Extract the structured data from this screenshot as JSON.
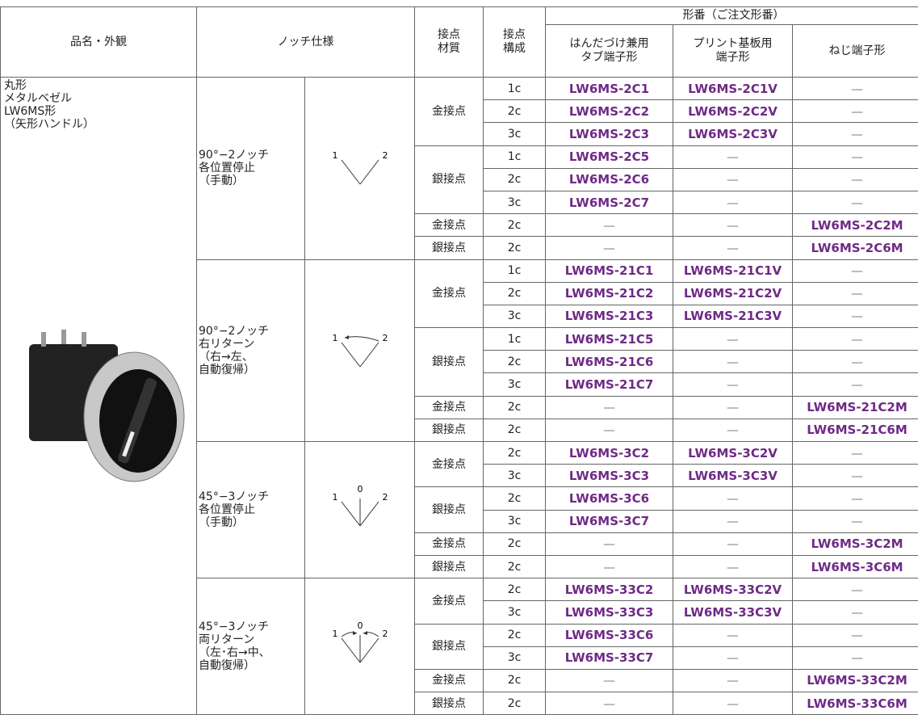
{
  "header": {
    "product": "品名・外観",
    "notch": "ノッチ仕様",
    "material": "接点\n材質",
    "config": "接点\n構成",
    "model_group": "形番（ご注文形番）",
    "model_cols": [
      "はんだづけ兼用\nタブ端子形",
      "プリント基板用\n端子形",
      "ねじ端子形"
    ]
  },
  "product": {
    "label": "丸形\nメタルベゼル\nLW6MS形\n（矢形ハンドル）"
  },
  "groups": [
    {
      "spec": "90°−2ノッチ\n各位置停止\n（手動）",
      "diagram": [
        "1",
        "2"
      ],
      "contacts": [
        {
          "material": "金接点",
          "rows": [
            [
              "1c",
              "LW6MS-2C1",
              "LW6MS-2C1V",
              "—"
            ],
            [
              "2c",
              "LW6MS-2C2",
              "LW6MS-2C2V",
              "—"
            ],
            [
              "3c",
              "LW6MS-2C3",
              "LW6MS-2C3V",
              "—"
            ]
          ]
        },
        {
          "material": "銀接点",
          "rows": [
            [
              "1c",
              "LW6MS-2C5",
              "—",
              "—"
            ],
            [
              "2c",
              "LW6MS-2C6",
              "—",
              "—"
            ],
            [
              "3c",
              "LW6MS-2C7",
              "—",
              "—"
            ]
          ]
        },
        {
          "material": "金接点",
          "rows": [
            [
              "2c",
              "—",
              "—",
              "LW6MS-2C2M"
            ]
          ]
        },
        {
          "material": "銀接点",
          "rows": [
            [
              "2c",
              "—",
              "—",
              "LW6MS-2C6M"
            ]
          ]
        }
      ]
    },
    {
      "spec": "90°−2ノッチ\n右リターン\n（右→左、\n 自動復帰）",
      "diagram": [
        "1",
        "2"
      ],
      "contacts": [
        {
          "material": "金接点",
          "rows": [
            [
              "1c",
              "LW6MS-21C1",
              "LW6MS-21C1V",
              "—"
            ],
            [
              "2c",
              "LW6MS-21C2",
              "LW6MS-21C2V",
              "—"
            ],
            [
              "3c",
              "LW6MS-21C3",
              "LW6MS-21C3V",
              "—"
            ]
          ]
        },
        {
          "material": "銀接点",
          "rows": [
            [
              "1c",
              "LW6MS-21C5",
              "—",
              "—"
            ],
            [
              "2c",
              "LW6MS-21C6",
              "—",
              "—"
            ],
            [
              "3c",
              "LW6MS-21C7",
              "—",
              "—"
            ]
          ]
        },
        {
          "material": "金接点",
          "rows": [
            [
              "2c",
              "—",
              "—",
              "LW6MS-21C2M"
            ]
          ]
        },
        {
          "material": "銀接点",
          "rows": [
            [
              "2c",
              "—",
              "—",
              "LW6MS-21C6M"
            ]
          ]
        }
      ]
    },
    {
      "spec": "45°−3ノッチ\n各位置停止\n（手動）",
      "diagram": [
        "1",
        "0",
        "2"
      ],
      "contacts": [
        {
          "material": "金接点",
          "rows": [
            [
              "2c",
              "LW6MS-3C2",
              "LW6MS-3C2V",
              "—"
            ],
            [
              "3c",
              "LW6MS-3C3",
              "LW6MS-3C3V",
              "—"
            ]
          ]
        },
        {
          "material": "銀接点",
          "rows": [
            [
              "2c",
              "LW6MS-3C6",
              "—",
              "—"
            ],
            [
              "3c",
              "LW6MS-3C7",
              "—",
              "—"
            ]
          ]
        },
        {
          "material": "金接点",
          "rows": [
            [
              "2c",
              "—",
              "—",
              "LW6MS-3C2M"
            ]
          ]
        },
        {
          "material": "銀接点",
          "rows": [
            [
              "2c",
              "—",
              "—",
              "LW6MS-3C6M"
            ]
          ]
        }
      ]
    },
    {
      "spec": "45°−3ノッチ\n両リターン\n（左･右→中、\n 自動復帰）",
      "diagram": [
        "1",
        "0",
        "2"
      ],
      "contacts": [
        {
          "material": "金接点",
          "rows": [
            [
              "2c",
              "LW6MS-33C2",
              "LW6MS-33C2V",
              "—"
            ],
            [
              "3c",
              "LW6MS-33C3",
              "LW6MS-33C3V",
              "—"
            ]
          ]
        },
        {
          "material": "銀接点",
          "rows": [
            [
              "2c",
              "LW6MS-33C6",
              "—",
              "—"
            ],
            [
              "3c",
              "LW6MS-33C7",
              "—",
              "—"
            ]
          ]
        },
        {
          "material": "金接点",
          "rows": [
            [
              "2c",
              "—",
              "—",
              "LW6MS-33C2M"
            ]
          ]
        },
        {
          "material": "銀接点",
          "rows": [
            [
              "2c",
              "—",
              "—",
              "LW6MS-33C6M"
            ]
          ]
        }
      ]
    }
  ]
}
